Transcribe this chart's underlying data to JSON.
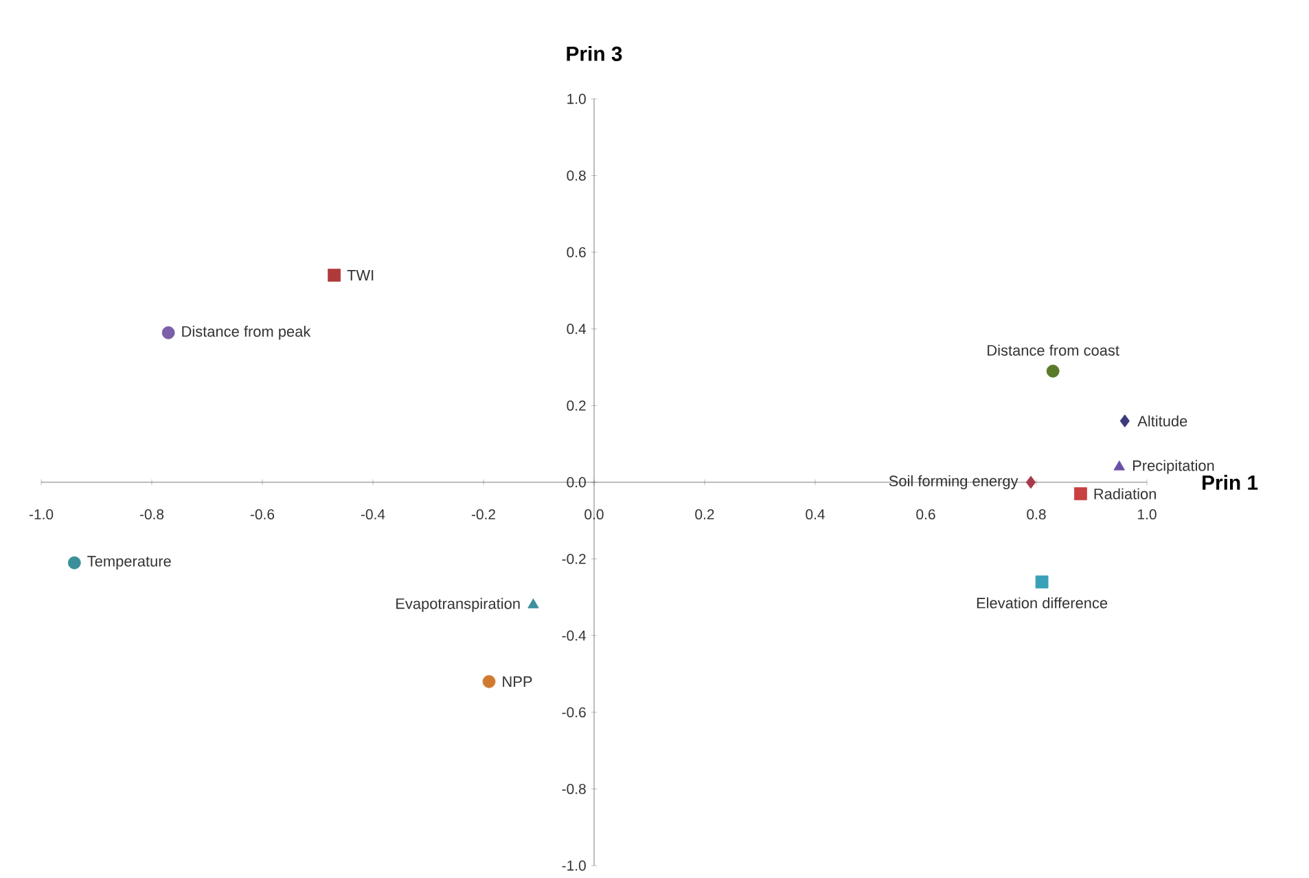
{
  "chart_data": {
    "type": "scatter",
    "xlabel": "Prin 1",
    "ylabel": "Prin 3",
    "xlim": [
      -1.0,
      1.0
    ],
    "ylim": [
      -1.0,
      1.0
    ],
    "xticks": [
      {
        "value": -1.0,
        "label": "-1.0"
      },
      {
        "value": -0.8,
        "label": "-0.8"
      },
      {
        "value": -0.6,
        "label": "-0.6"
      },
      {
        "value": -0.4,
        "label": "-0.4"
      },
      {
        "value": -0.2,
        "label": "-0.2"
      },
      {
        "value": 0.0,
        "label": "0.0"
      },
      {
        "value": 0.2,
        "label": "0.2"
      },
      {
        "value": 0.4,
        "label": "0.4"
      },
      {
        "value": 0.6,
        "label": "0.6"
      },
      {
        "value": 0.8,
        "label": "0.8"
      },
      {
        "value": 1.0,
        "label": "1.0"
      }
    ],
    "yticks": [
      {
        "value": -1.0,
        "label": "-1.0"
      },
      {
        "value": -0.8,
        "label": "-0.8"
      },
      {
        "value": -0.6,
        "label": "-0.6"
      },
      {
        "value": -0.4,
        "label": "-0.4"
      },
      {
        "value": -0.2,
        "label": "-0.2"
      },
      {
        "value": 0.0,
        "label": "0.0"
      },
      {
        "value": 0.2,
        "label": "0.2"
      },
      {
        "value": 0.4,
        "label": "0.4"
      },
      {
        "value": 0.6,
        "label": "0.6"
      },
      {
        "value": 0.8,
        "label": "0.8"
      },
      {
        "value": 1.0,
        "label": "1.0"
      }
    ],
    "grid": false,
    "legend": false,
    "series": [
      {
        "name": "TWI",
        "color": "#b03a3a",
        "marker": "square",
        "x": [
          -0.47
        ],
        "values": [
          0.54
        ]
      },
      {
        "name": "Distance from peak",
        "color": "#7b5fa8",
        "marker": "circle",
        "x": [
          -0.77
        ],
        "values": [
          0.39
        ]
      },
      {
        "name": "Temperature",
        "color": "#3a8f9a",
        "marker": "circle",
        "x": [
          -0.94
        ],
        "values": [
          -0.21
        ]
      },
      {
        "name": "Evapotranspiration",
        "color": "#3a8fa0",
        "marker": "triangle",
        "x": [
          -0.11
        ],
        "values": [
          -0.32
        ]
      },
      {
        "name": "NPP",
        "color": "#d07a30",
        "marker": "circle",
        "x": [
          -0.19
        ],
        "values": [
          -0.52
        ]
      },
      {
        "name": "Distance from coast",
        "color": "#5a7a2a",
        "marker": "circle",
        "x": [
          0.83
        ],
        "values": [
          0.29
        ]
      },
      {
        "name": "Altitude",
        "color": "#3b3b7a",
        "marker": "diamond",
        "x": [
          0.96
        ],
        "values": [
          0.16
        ]
      },
      {
        "name": "Precipitation",
        "color": "#6a4fa8",
        "marker": "triangle",
        "x": [
          0.95
        ],
        "values": [
          0.04
        ]
      },
      {
        "name": "Soil forming energy",
        "color": "#a83a4a",
        "marker": "diamond",
        "x": [
          0.79
        ],
        "values": [
          0.0
        ]
      },
      {
        "name": "Radiation",
        "color": "#c84040",
        "marker": "square",
        "x": [
          0.88
        ],
        "values": [
          -0.03
        ]
      },
      {
        "name": "Elevation difference",
        "color": "#3aa0b8",
        "marker": "square",
        "x": [
          0.81
        ],
        "values": [
          -0.26
        ]
      }
    ]
  }
}
